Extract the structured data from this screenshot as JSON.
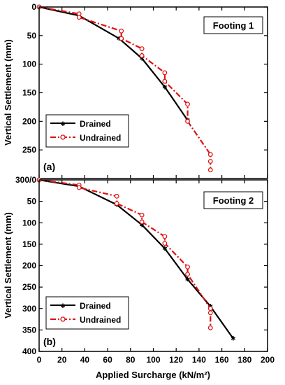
{
  "figure": {
    "xlabel": "Applied Surcharge (kN/m²)",
    "ylabel": "Vertical Settlement (mm)",
    "shared_tick_label": "300/0"
  },
  "chart_data": [
    {
      "type": "line",
      "panel_label": "(a)",
      "title": "Footing 1",
      "xlabel": "Applied Surcharge (kN/m²)",
      "ylabel": "Vertical Settlement (mm)",
      "xlim": [
        0,
        200
      ],
      "ylim": [
        0,
        300
      ],
      "y_inverted": true,
      "xticks": [
        0,
        20,
        40,
        60,
        80,
        100,
        120,
        140,
        160,
        180,
        200
      ],
      "yticks": [
        0,
        50,
        100,
        150,
        200,
        250
      ],
      "legend_position": "bottom-left",
      "series": [
        {
          "name": "Drained",
          "color": "#000000",
          "line_style": "solid",
          "marker": "star",
          "points": [
            [
              0,
              0
            ],
            [
              35,
              15
            ],
            [
              70,
              55
            ],
            [
              90,
              90
            ],
            [
              110,
              140
            ],
            [
              130,
              198
            ]
          ]
        },
        {
          "name": "Undrained",
          "color": "#dd1111",
          "line_style": "dash-dot",
          "marker": "open-circle",
          "points": [
            [
              0,
              0
            ],
            [
              35,
              12
            ],
            [
              35,
              18
            ],
            [
              72,
              42
            ],
            [
              72,
              55
            ],
            [
              90,
              73
            ],
            [
              90,
              85
            ],
            [
              110,
              115
            ],
            [
              110,
              130
            ],
            [
              130,
              170
            ],
            [
              130,
              200
            ],
            [
              150,
              258
            ],
            [
              150,
              270
            ],
            [
              150,
              285
            ]
          ]
        }
      ]
    },
    {
      "type": "line",
      "panel_label": "(b)",
      "title": "Footing 2",
      "xlabel": "Applied Surcharge (kN/m²)",
      "ylabel": "Vertical Settlement (mm)",
      "xlim": [
        0,
        200
      ],
      "ylim": [
        0,
        400
      ],
      "y_inverted": true,
      "xticks": [
        0,
        20,
        40,
        60,
        80,
        100,
        120,
        140,
        160,
        180,
        200
      ],
      "yticks": [
        50,
        100,
        150,
        200,
        250,
        300,
        350,
        400
      ],
      "legend_position": "bottom-left",
      "series": [
        {
          "name": "Drained",
          "color": "#000000",
          "line_style": "solid",
          "marker": "star",
          "points": [
            [
              0,
              0
            ],
            [
              35,
              15
            ],
            [
              68,
              58
            ],
            [
              90,
              105
            ],
            [
              110,
              160
            ],
            [
              130,
              232
            ],
            [
              150,
              295
            ],
            [
              170,
              370
            ]
          ]
        },
        {
          "name": "Undrained",
          "color": "#dd1111",
          "line_style": "dash-dot",
          "marker": "open-circle",
          "points": [
            [
              0,
              0
            ],
            [
              35,
              12
            ],
            [
              35,
              18
            ],
            [
              68,
              38
            ],
            [
              68,
              55
            ],
            [
              90,
              82
            ],
            [
              90,
              98
            ],
            [
              110,
              132
            ],
            [
              110,
              148
            ],
            [
              130,
              203
            ],
            [
              130,
              220
            ],
            [
              150,
              300
            ],
            [
              150,
              310
            ],
            [
              150,
              345
            ]
          ]
        }
      ]
    }
  ]
}
